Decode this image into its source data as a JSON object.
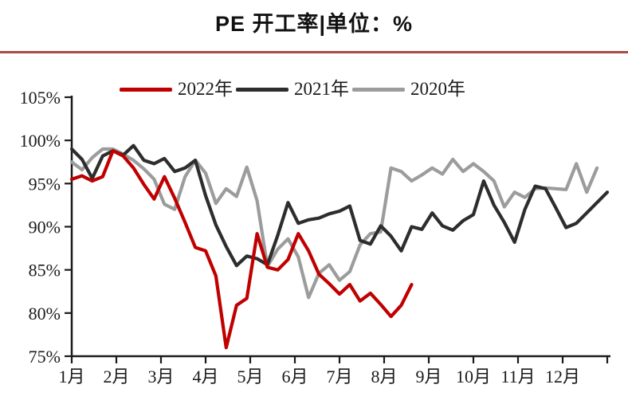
{
  "title": "PE 开工率|单位：%",
  "divider_color": "#a84a4a",
  "axis_color": "#1a1a1a",
  "legend": {
    "items": [
      {
        "label": "2022年",
        "color": "#c00000"
      },
      {
        "label": "2021年",
        "color": "#2d2d2d"
      },
      {
        "label": "2020年",
        "color": "#9c9c9c"
      }
    ]
  },
  "chart_data": {
    "type": "line",
    "title": "PE 开工率|单位：%",
    "unit": "%",
    "x_axis": {
      "tick_labels": [
        "1月",
        "2月",
        "3月",
        "4月",
        "5月",
        "6月",
        "7月",
        "8月",
        "9月",
        "10月",
        "11月",
        "12月"
      ],
      "points_per_year": 52,
      "gridlines": false
    },
    "y_axis": {
      "tick_labels": [
        "105%",
        "100%",
        "95%",
        "90%",
        "85%",
        "80%",
        "75%"
      ],
      "ylim": [
        75,
        105
      ],
      "tick_step": 5,
      "gridlines": false
    },
    "legend_position": "top",
    "series": [
      {
        "name": "2022年",
        "color": "#c00000",
        "values": [
          95.5,
          95.9,
          95.3,
          95.8,
          98.8,
          98.2,
          96.8,
          94.9,
          93.2,
          95.8,
          93.3,
          90.5,
          87.6,
          87.2,
          84.3,
          76.0,
          80.9,
          81.7,
          89.2,
          85.3,
          85.0,
          86.2,
          89.2,
          87.2,
          84.5,
          83.4,
          82.2,
          83.3,
          81.4,
          82.3,
          81.0,
          79.6,
          80.9,
          83.3
        ]
      },
      {
        "name": "2021年",
        "color": "#2d2d2d",
        "values": [
          99.0,
          97.8,
          95.6,
          98.2,
          98.8,
          98.3,
          99.4,
          97.7,
          97.3,
          97.9,
          96.4,
          96.8,
          97.7,
          93.6,
          90.2,
          87.7,
          85.5,
          86.6,
          86.3,
          85.6,
          89.0,
          92.8,
          90.4,
          90.8,
          91.0,
          91.5,
          91.8,
          92.4,
          88.4,
          88.0,
          90.1,
          88.9,
          87.2,
          90.0,
          89.7,
          91.6,
          90.1,
          89.6,
          90.7,
          91.4,
          95.3,
          92.5,
          90.5,
          88.2,
          92.0,
          94.7,
          94.4,
          92.2,
          89.9,
          90.4,
          91.6,
          92.8,
          94.0
        ]
      },
      {
        "name": "2020年",
        "color": "#9c9c9c",
        "values": [
          97.5,
          96.6,
          98.0,
          99.0,
          99.0,
          98.4,
          97.7,
          96.7,
          95.5,
          92.6,
          92.0,
          95.8,
          97.7,
          96.2,
          92.7,
          94.4,
          93.5,
          96.9,
          93.0,
          85.4,
          87.4,
          88.6,
          86.5,
          81.8,
          84.6,
          85.6,
          83.8,
          84.8,
          87.9,
          89.2,
          89.4,
          96.8,
          96.4,
          95.3,
          96.0,
          96.8,
          96.1,
          97.8,
          96.4,
          97.3,
          96.4,
          95.3,
          92.3,
          94.0,
          93.4,
          94.4,
          94.5,
          94.4,
          94.3,
          97.3,
          94.0,
          96.8
        ]
      }
    ]
  }
}
